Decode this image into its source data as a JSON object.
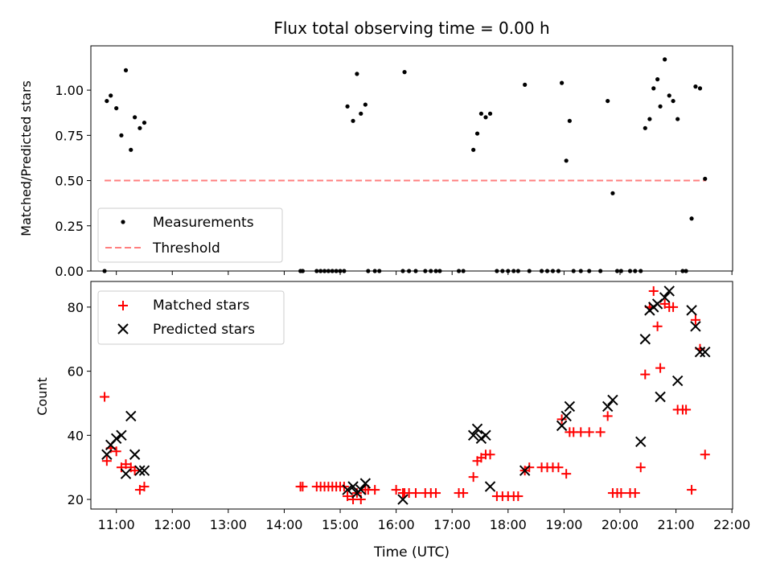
{
  "colors": {
    "measurement": "#000000",
    "threshold": "#ff7f7f",
    "matched": "#ff0000",
    "predicted": "#000000"
  },
  "chart_data": [
    {
      "type": "scatter",
      "title": "Flux total observing time = 0.00 h",
      "xlabel": "",
      "ylabel": "Matched/Predicted stars",
      "xlim": [
        10.545,
        22.012
      ],
      "ylim": [
        0,
        1.245
      ],
      "yticks": [
        0.0,
        0.25,
        0.5,
        0.75,
        1.0
      ],
      "ytick_labels": [
        "0.00",
        "0.25",
        "0.50",
        "0.75",
        "1.00"
      ],
      "legend": {
        "placement": "lower-left",
        "entries": [
          "Measurements",
          "Threshold"
        ]
      },
      "grid": false,
      "series": [
        {
          "name": "Measurements",
          "kind": "points",
          "points": [
            [
              10.79,
              0.0
            ],
            [
              10.83,
              0.94
            ],
            [
              10.9,
              0.97
            ],
            [
              11.0,
              0.9
            ],
            [
              11.09,
              0.75
            ],
            [
              11.17,
              1.11
            ],
            [
              11.26,
              0.67
            ],
            [
              11.33,
              0.85
            ],
            [
              11.42,
              0.79
            ],
            [
              11.5,
              0.82
            ],
            [
              14.29,
              0.0
            ],
            [
              14.33,
              0.0
            ],
            [
              14.58,
              0.0
            ],
            [
              14.65,
              0.0
            ],
            [
              14.72,
              0.0
            ],
            [
              14.79,
              0.0
            ],
            [
              14.86,
              0.0
            ],
            [
              14.93,
              0.0
            ],
            [
              15.0,
              0.0
            ],
            [
              15.07,
              0.0
            ],
            [
              15.13,
              0.91
            ],
            [
              15.23,
              0.83
            ],
            [
              15.3,
              1.09
            ],
            [
              15.37,
              0.87
            ],
            [
              15.45,
              0.92
            ],
            [
              15.5,
              0.0
            ],
            [
              15.62,
              0.0
            ],
            [
              15.7,
              0.0
            ],
            [
              16.12,
              0.0
            ],
            [
              16.15,
              1.1
            ],
            [
              16.23,
              0.0
            ],
            [
              16.35,
              0.0
            ],
            [
              16.52,
              0.0
            ],
            [
              16.62,
              0.0
            ],
            [
              16.71,
              0.0
            ],
            [
              16.78,
              0.0
            ],
            [
              17.12,
              0.0
            ],
            [
              17.2,
              0.0
            ],
            [
              17.38,
              0.67
            ],
            [
              17.45,
              0.76
            ],
            [
              17.52,
              0.87
            ],
            [
              17.6,
              0.85
            ],
            [
              17.68,
              0.87
            ],
            [
              17.8,
              0.0
            ],
            [
              17.9,
              0.0
            ],
            [
              18.0,
              0.0
            ],
            [
              18.1,
              0.0
            ],
            [
              18.18,
              0.0
            ],
            [
              18.3,
              1.03
            ],
            [
              18.38,
              0.0
            ],
            [
              18.6,
              0.0
            ],
            [
              18.7,
              0.0
            ],
            [
              18.8,
              0.0
            ],
            [
              18.9,
              0.0
            ],
            [
              18.96,
              1.04
            ],
            [
              19.04,
              0.61
            ],
            [
              19.1,
              0.83
            ],
            [
              19.17,
              0.0
            ],
            [
              19.3,
              0.0
            ],
            [
              19.45,
              0.0
            ],
            [
              19.65,
              0.0
            ],
            [
              19.78,
              0.94
            ],
            [
              19.87,
              0.43
            ],
            [
              19.95,
              0.0
            ],
            [
              20.02,
              0.0
            ],
            [
              20.18,
              0.0
            ],
            [
              20.27,
              0.0
            ],
            [
              20.37,
              0.0
            ],
            [
              20.45,
              0.79
            ],
            [
              20.53,
              0.84
            ],
            [
              20.6,
              1.01
            ],
            [
              20.67,
              1.06
            ],
            [
              20.72,
              0.91
            ],
            [
              20.8,
              1.17
            ],
            [
              20.88,
              0.97
            ],
            [
              20.95,
              0.94
            ],
            [
              21.03,
              0.84
            ],
            [
              21.12,
              0.0
            ],
            [
              21.18,
              0.0
            ],
            [
              21.28,
              0.29
            ],
            [
              21.35,
              1.02
            ],
            [
              21.43,
              1.01
            ],
            [
              21.52,
              0.51
            ]
          ]
        },
        {
          "name": "Threshold",
          "kind": "dashed-line",
          "x": [
            10.79,
            21.54
          ],
          "y": [
            0.5,
            0.5
          ]
        }
      ]
    },
    {
      "type": "scatter",
      "title": "",
      "xlabel": "Time (UTC)",
      "ylabel": "Count",
      "xlim": [
        10.545,
        22.012
      ],
      "ylim": [
        17,
        88
      ],
      "xticks": [
        11,
        12,
        13,
        14,
        15,
        16,
        17,
        18,
        19,
        20,
        21,
        22
      ],
      "xtick_labels": [
        "11:00",
        "12:00",
        "13:00",
        "14:00",
        "15:00",
        "16:00",
        "17:00",
        "18:00",
        "19:00",
        "20:00",
        "21:00",
        "22:00"
      ],
      "yticks": [
        20,
        40,
        60,
        80
      ],
      "ytick_labels": [
        "20",
        "40",
        "60",
        "80"
      ],
      "legend": {
        "placement": "upper-left",
        "entries": [
          "Matched stars",
          "Predicted stars"
        ]
      },
      "grid": false,
      "series": [
        {
          "name": "Matched stars",
          "kind": "plus",
          "points": [
            [
              10.79,
              52
            ],
            [
              10.83,
              32
            ],
            [
              10.9,
              36
            ],
            [
              11.0,
              35
            ],
            [
              11.09,
              30
            ],
            [
              11.17,
              31
            ],
            [
              11.26,
              30
            ],
            [
              11.33,
              29
            ],
            [
              11.42,
              23
            ],
            [
              11.5,
              24
            ],
            [
              14.29,
              24
            ],
            [
              14.33,
              24
            ],
            [
              14.58,
              24
            ],
            [
              14.65,
              24
            ],
            [
              14.72,
              24
            ],
            [
              14.79,
              24
            ],
            [
              14.86,
              24
            ],
            [
              14.93,
              24
            ],
            [
              15.0,
              24
            ],
            [
              15.07,
              24
            ],
            [
              15.13,
              21
            ],
            [
              15.23,
              20
            ],
            [
              15.3,
              22
            ],
            [
              15.37,
              20
            ],
            [
              15.45,
              23
            ],
            [
              15.5,
              23
            ],
            [
              15.62,
              23
            ],
            [
              16.0,
              23
            ],
            [
              16.12,
              22
            ],
            [
              16.15,
              22
            ],
            [
              16.23,
              22
            ],
            [
              16.35,
              22
            ],
            [
              16.52,
              22
            ],
            [
              16.62,
              22
            ],
            [
              16.71,
              22
            ],
            [
              17.12,
              22
            ],
            [
              17.2,
              22
            ],
            [
              17.38,
              27
            ],
            [
              17.45,
              32
            ],
            [
              17.52,
              33
            ],
            [
              17.6,
              34
            ],
            [
              17.68,
              34
            ],
            [
              17.8,
              21
            ],
            [
              17.9,
              21
            ],
            [
              18.0,
              21
            ],
            [
              18.1,
              21
            ],
            [
              18.18,
              21
            ],
            [
              18.3,
              29
            ],
            [
              18.38,
              30
            ],
            [
              18.6,
              30
            ],
            [
              18.7,
              30
            ],
            [
              18.8,
              30
            ],
            [
              18.9,
              30
            ],
            [
              18.96,
              45
            ],
            [
              19.04,
              28
            ],
            [
              19.1,
              41
            ],
            [
              19.17,
              41
            ],
            [
              19.3,
              41
            ],
            [
              19.45,
              41
            ],
            [
              19.65,
              41
            ],
            [
              19.78,
              46
            ],
            [
              19.87,
              22
            ],
            [
              19.95,
              22
            ],
            [
              20.02,
              22
            ],
            [
              20.18,
              22
            ],
            [
              20.27,
              22
            ],
            [
              20.37,
              30
            ],
            [
              20.45,
              59
            ],
            [
              20.53,
              80
            ],
            [
              20.6,
              85
            ],
            [
              20.67,
              74
            ],
            [
              20.72,
              61
            ],
            [
              20.8,
              81
            ],
            [
              20.88,
              80
            ],
            [
              20.95,
              80
            ],
            [
              21.03,
              48
            ],
            [
              21.12,
              48
            ],
            [
              21.18,
              48
            ],
            [
              21.28,
              23
            ],
            [
              21.35,
              76
            ],
            [
              21.43,
              67
            ],
            [
              21.52,
              34
            ]
          ]
        },
        {
          "name": "Predicted stars",
          "kind": "cross",
          "points": [
            [
              10.83,
              34
            ],
            [
              10.9,
              37
            ],
            [
              11.0,
              39
            ],
            [
              11.09,
              40
            ],
            [
              11.17,
              28
            ],
            [
              11.26,
              46
            ],
            [
              11.33,
              34
            ],
            [
              11.42,
              29
            ],
            [
              11.5,
              29
            ],
            [
              15.13,
              23
            ],
            [
              15.23,
              24
            ],
            [
              15.3,
              22
            ],
            [
              15.37,
              23
            ],
            [
              15.45,
              25
            ],
            [
              16.12,
              20
            ],
            [
              17.38,
              40
            ],
            [
              17.45,
              42
            ],
            [
              17.52,
              39
            ],
            [
              17.6,
              40
            ],
            [
              17.68,
              24
            ],
            [
              18.3,
              29
            ],
            [
              18.96,
              43
            ],
            [
              19.04,
              46
            ],
            [
              19.1,
              49
            ],
            [
              19.78,
              49
            ],
            [
              19.87,
              51
            ],
            [
              20.37,
              38
            ],
            [
              20.45,
              70
            ],
            [
              20.53,
              79
            ],
            [
              20.6,
              80
            ],
            [
              20.67,
              81
            ],
            [
              20.72,
              52
            ],
            [
              20.8,
              83
            ],
            [
              20.88,
              85
            ],
            [
              21.03,
              57
            ],
            [
              21.28,
              79
            ],
            [
              21.35,
              74
            ],
            [
              21.43,
              66
            ],
            [
              21.52,
              66
            ]
          ]
        }
      ]
    }
  ]
}
